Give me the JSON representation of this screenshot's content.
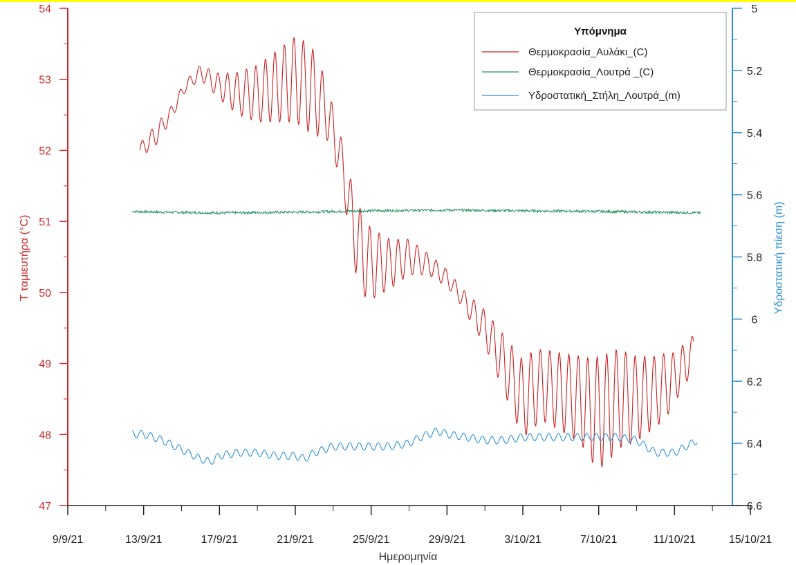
{
  "chart_data": {
    "type": "line",
    "xlabel": "Ημερομηνία",
    "ylabel_left": "Τ ταμιευτήρα (°C)",
    "ylabel_right": "Υδροστατική πίεση (m)",
    "x_ticks": [
      "9/9/21",
      "13/9/21",
      "17/9/21",
      "21/9/21",
      "25/9/21",
      "29/9/21",
      "3/10/21",
      "7/10/21",
      "11/10/21",
      "15/10/21"
    ],
    "x_tick_days": [
      0,
      4,
      8,
      12,
      16,
      20,
      24,
      28,
      32,
      36
    ],
    "x_origin_date": "2021-09-09",
    "xlim_days": [
      0,
      36
    ],
    "y_left_ticks": [
      "47",
      "48",
      "49",
      "50",
      "51",
      "52",
      "53",
      "54"
    ],
    "ylim_left": [
      47,
      54
    ],
    "y_right_ticks": [
      "5",
      "5.2",
      "5.4",
      "5.6",
      "5.8",
      "6",
      "6.2",
      "6.4",
      "6.6"
    ],
    "ylim_right": [
      5,
      6.6
    ],
    "right_axis_inverted": true,
    "grid": false,
    "legend_position": "top-right",
    "legend": {
      "title": "Υπόμνημα",
      "entries": [
        {
          "name": "Θερμοκρασία_Αυλάκι_(C)",
          "color": "#cc1f1f"
        },
        {
          "name": "Θερμοκρασία_Λουτρά _(C)",
          "color": "#1f8f5a"
        },
        {
          "name": "Υδροστατική_Στήλη_Λουτρά_(m)",
          "color": "#2a90d8"
        }
      ]
    },
    "colors": {
      "left_axis": "#cc2a2a",
      "right_axis": "#2a8fd4",
      "x_axis": "#222222"
    },
    "series": [
      {
        "name": "Θερμοκρασία_Αυλάκι_(C)",
        "axis": "left",
        "color": "#cc1f1f",
        "x_days": [
          3.8,
          4.6,
          5.4,
          6.2,
          7.0,
          8.0,
          9.0,
          10.0,
          11.0,
          12.0,
          12.6,
          13.0,
          13.6,
          14.4,
          14.8,
          15.2,
          15.6,
          16.0,
          17.0,
          18.0,
          19.0,
          20.0,
          20.6,
          21.0,
          22.0,
          23.0,
          24.0,
          24.4,
          25.0,
          26.0,
          27.0,
          27.6,
          28.0,
          28.6,
          29.0,
          30.0,
          31.0,
          31.6,
          32.0,
          32.6,
          33.0
        ],
        "mid": [
          52.0,
          52.2,
          52.5,
          52.9,
          53.1,
          52.9,
          52.8,
          52.8,
          52.9,
          53.0,
          52.9,
          52.8,
          52.6,
          51.9,
          51.3,
          50.8,
          50.5,
          50.4,
          50.4,
          50.5,
          50.4,
          50.2,
          50.0,
          49.85,
          49.5,
          49.0,
          48.5,
          48.6,
          48.7,
          48.6,
          48.5,
          48.35,
          48.3,
          48.4,
          48.5,
          48.5,
          48.6,
          48.7,
          48.8,
          49.0,
          49.2
        ],
        "amp": [
          0.1,
          0.15,
          0.1,
          0.08,
          0.1,
          0.18,
          0.3,
          0.4,
          0.5,
          0.6,
          0.62,
          0.6,
          0.4,
          0.3,
          0.4,
          0.55,
          0.55,
          0.5,
          0.35,
          0.25,
          0.15,
          0.12,
          0.12,
          0.15,
          0.25,
          0.4,
          0.55,
          0.55,
          0.5,
          0.55,
          0.6,
          0.72,
          0.8,
          0.75,
          0.7,
          0.6,
          0.5,
          0.45,
          0.35,
          0.3,
          0.2
        ],
        "period_days": 0.5
      },
      {
        "name": "Θερμοκρασία_Λουτρά _(C)",
        "axis": "left",
        "color": "#1f8f5a",
        "x_days": [
          3.4,
          5.0,
          8.0,
          12.0,
          16.0,
          20.0,
          24.0,
          28.0,
          33.4
        ],
        "values": [
          51.14,
          51.13,
          51.12,
          51.13,
          51.15,
          51.16,
          51.15,
          51.14,
          51.12
        ],
        "noise": 0.018
      },
      {
        "name": "Υδροστατική_Στήλη_Λουτρά_(m)",
        "axis": "right",
        "color": "#2a90d8",
        "x_days": [
          3.4,
          4.0,
          5.0,
          6.0,
          7.0,
          7.5,
          8.0,
          9.0,
          10.0,
          11.0,
          12.0,
          12.5,
          13.0,
          14.0,
          15.0,
          16.0,
          17.0,
          18.0,
          18.6,
          19.5,
          20.0,
          21.0,
          22.0,
          23.0,
          24.0,
          25.0,
          26.0,
          27.0,
          28.0,
          29.0,
          30.0,
          30.5,
          31.0,
          32.0,
          32.6,
          33.2
        ],
        "values": [
          6.37,
          6.37,
          6.39,
          6.42,
          6.45,
          6.46,
          6.44,
          6.43,
          6.43,
          6.44,
          6.44,
          6.45,
          6.43,
          6.41,
          6.41,
          6.41,
          6.41,
          6.4,
          6.38,
          6.36,
          6.37,
          6.38,
          6.39,
          6.39,
          6.38,
          6.38,
          6.38,
          6.38,
          6.38,
          6.38,
          6.39,
          6.41,
          6.43,
          6.43,
          6.41,
          6.39
        ],
        "amp": 0.012,
        "period_days": 0.5
      }
    ]
  }
}
